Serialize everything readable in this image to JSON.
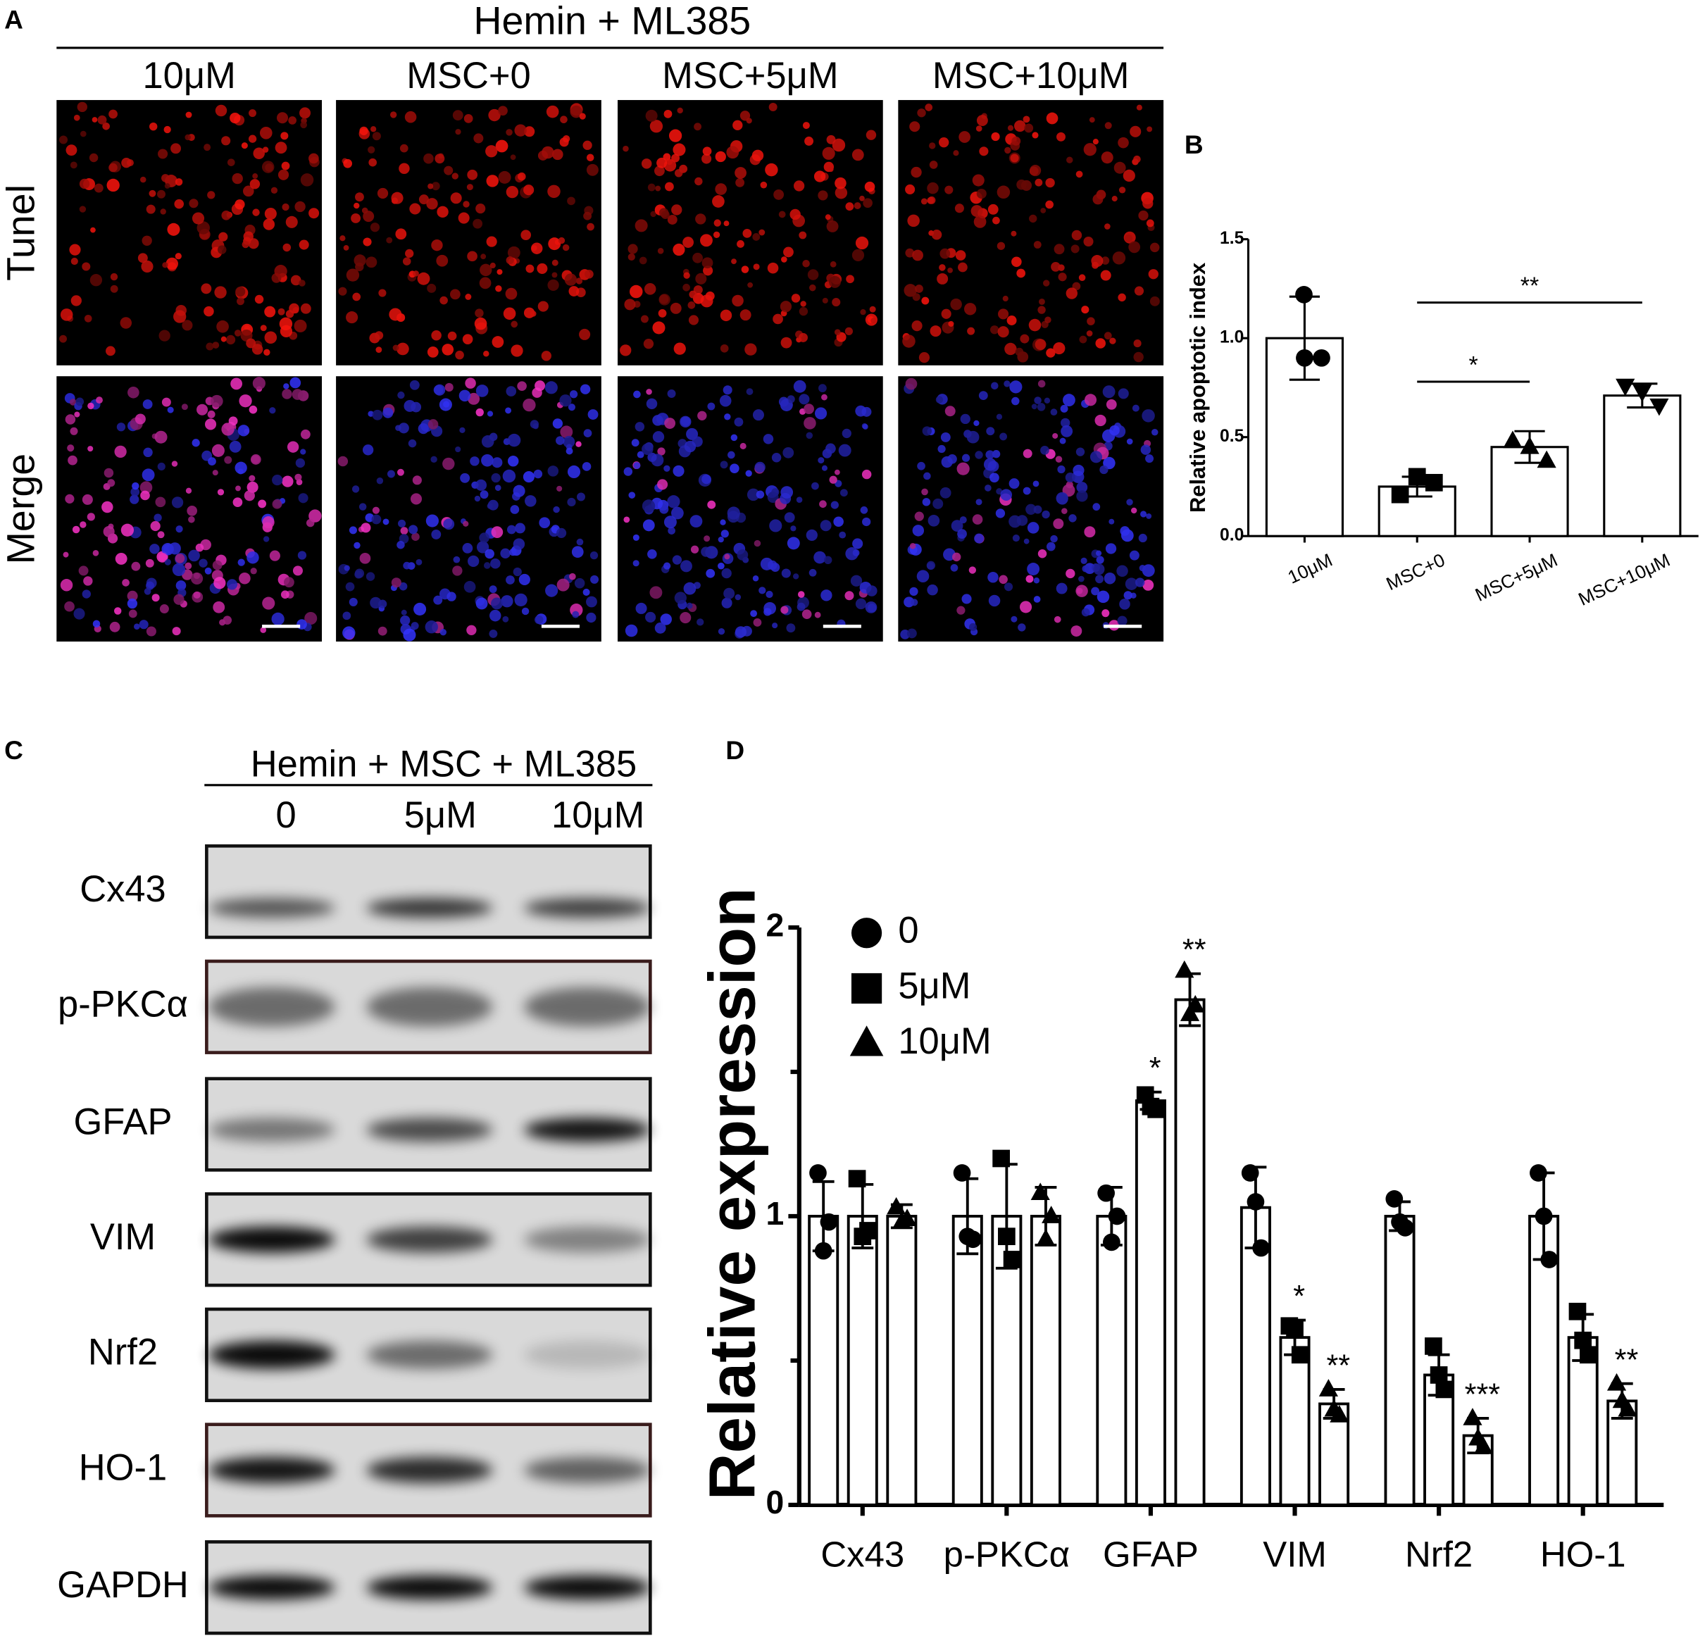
{
  "panel_a": {
    "label": "A",
    "header": "Hemin + ML385",
    "columns": [
      "10μM",
      "MSC+0",
      "MSC+5μM",
      "MSC+10μM"
    ],
    "rows": [
      "Tunel",
      "Merge"
    ]
  },
  "panel_c": {
    "label": "C",
    "header": "Hemin + MSC + ML385",
    "columns": [
      "0",
      "5μM",
      "10μM"
    ],
    "rows": [
      "Cx43",
      "p-PKCα",
      "GFAP",
      "VIM",
      "Nrf2",
      "HO-1",
      "GAPDH"
    ]
  },
  "chart_data": [
    {
      "type": "bar",
      "label": "B",
      "y_label": "Relative apoptotic index",
      "categories": [
        "10μM",
        "MSC+0",
        "MSC+5μM",
        "MSC+10μM"
      ],
      "values": [
        1.0,
        0.25,
        0.45,
        0.71
      ],
      "errors": [
        0.21,
        0.05,
        0.08,
        0.06
      ],
      "points": [
        [
          1.22,
          0.9,
          0.9
        ],
        [
          0.21,
          0.3,
          0.27
        ],
        [
          0.48,
          0.45,
          0.38
        ],
        [
          0.76,
          0.73,
          0.66
        ]
      ],
      "markers": [
        "circle",
        "square",
        "triangle",
        "triangle-down"
      ],
      "color": "#000000",
      "bar_fill": "#ffffff",
      "ylim": [
        0,
        1.5
      ],
      "yticks": [
        {
          "value": 0,
          "label": "0.0"
        },
        0.5,
        {
          "value": 1,
          "label": "1.0"
        },
        1.5
      ],
      "annotations": [
        {
          "text": "*",
          "from": "MSC+0",
          "to": "MSC+5μM",
          "y": 0.78
        },
        {
          "text": "**",
          "from": "MSC+0",
          "to": "MSC+10μM",
          "y": 1.18
        }
      ]
    },
    {
      "type": "grouped_bar",
      "label": "D",
      "y_label": "Relative expression",
      "categories": [
        "Cx43",
        "p-PKCα",
        "GFAP",
        "VIM",
        "Nrf2",
        "HO-1"
      ],
      "ylim": [
        0,
        2
      ],
      "yticks": [
        0,
        1,
        2
      ],
      "minor_yticks": [
        0.5,
        1.5
      ],
      "bar_fill": "#ffffff",
      "series": [
        {
          "name": "0",
          "marker": "circle",
          "color": "#000000",
          "values": [
            1.0,
            1.0,
            1.0,
            1.03,
            1.0,
            1.0
          ],
          "errors": [
            0.12,
            0.13,
            0.1,
            0.14,
            0.05,
            0.15
          ],
          "points": [
            [
              1.15,
              0.88,
              0.98
            ],
            [
              1.15,
              0.93,
              0.92
            ],
            [
              1.08,
              0.91,
              1.0
            ],
            [
              1.15,
              1.05,
              0.89
            ],
            [
              1.06,
              0.98,
              0.96
            ],
            [
              1.15,
              1.0,
              0.85
            ]
          ],
          "significance": [
            null,
            null,
            null,
            null,
            null,
            null
          ]
        },
        {
          "name": "5μM",
          "marker": "square",
          "color": "#000000",
          "values": [
            1.0,
            1.0,
            1.4,
            0.58,
            0.45,
            0.58
          ],
          "errors": [
            0.11,
            0.18,
            0.03,
            0.06,
            0.07,
            0.08
          ],
          "points": [
            [
              1.13,
              0.93,
              0.95
            ],
            [
              1.2,
              0.93,
              0.85
            ],
            [
              1.42,
              1.38,
              1.37
            ],
            [
              0.62,
              0.61,
              0.52
            ],
            [
              0.55,
              0.45,
              0.4
            ],
            [
              0.67,
              0.57,
              0.52
            ]
          ],
          "significance": [
            null,
            null,
            "*",
            "*",
            null,
            null
          ]
        },
        {
          "name": "10μM",
          "marker": "triangle",
          "color": "#000000",
          "values": [
            1.0,
            1.0,
            1.75,
            0.35,
            0.24,
            0.36
          ],
          "errors": [
            0.04,
            0.1,
            0.09,
            0.05,
            0.06,
            0.06
          ],
          "points": [
            [
              1.03,
              0.98,
              0.99
            ],
            [
              1.08,
              0.92,
              1.0
            ],
            [
              1.85,
              1.7,
              1.73
            ],
            [
              0.4,
              0.33,
              0.31
            ],
            [
              0.3,
              0.23,
              0.2
            ],
            [
              0.42,
              0.36,
              0.33
            ]
          ],
          "significance": [
            null,
            null,
            "**",
            "**",
            "***",
            "**"
          ]
        }
      ]
    }
  ]
}
